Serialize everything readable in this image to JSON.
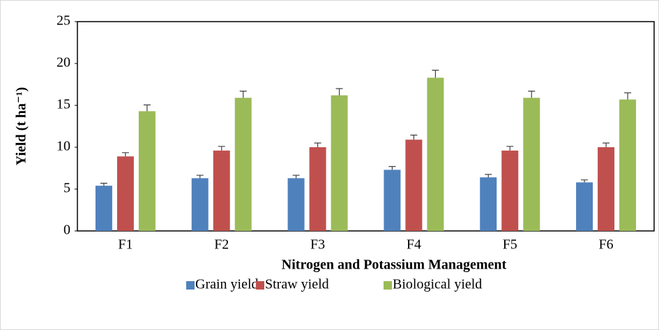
{
  "chart_data": {
    "type": "bar",
    "x_label": "Nitrogen and Potassium Management",
    "y_label": "Yield (t ha⁻¹)",
    "categories": [
      "F1",
      "F2",
      "F3",
      "F4",
      "F5",
      "F6"
    ],
    "series": [
      {
        "name": "Grain yield",
        "color": "#4f81bd",
        "values": [
          5.4,
          6.3,
          6.3,
          7.3,
          6.4,
          5.8
        ],
        "errors": [
          0.3,
          0.35,
          0.35,
          0.4,
          0.35,
          0.3
        ]
      },
      {
        "name": "Straw yield",
        "color": "#c0504d",
        "values": [
          8.9,
          9.6,
          10.0,
          10.9,
          9.6,
          10.0
        ],
        "errors": [
          0.45,
          0.5,
          0.5,
          0.55,
          0.5,
          0.5
        ]
      },
      {
        "name": "Biological yield",
        "color": "#9bbb59",
        "values": [
          14.3,
          15.9,
          16.2,
          18.3,
          15.9,
          15.7
        ],
        "errors": [
          0.75,
          0.8,
          0.8,
          0.9,
          0.8,
          0.8
        ]
      }
    ],
    "ylim": [
      0,
      25
    ],
    "yticks": [
      0,
      5,
      10,
      15,
      20,
      25
    ],
    "grid": false,
    "legend": "bottom"
  }
}
